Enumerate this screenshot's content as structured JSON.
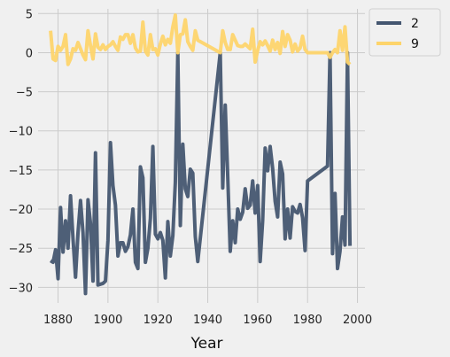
{
  "chart_data": {
    "type": "line",
    "title": "",
    "xlabel": "Year",
    "ylabel": "",
    "xlim": [
      1872,
      2003
    ],
    "ylim": [
      -32,
      5.6
    ],
    "xticks": [
      1880,
      1900,
      1920,
      1940,
      1960,
      1980,
      2000
    ],
    "yticks": [
      5,
      0,
      -5,
      -10,
      -15,
      -20,
      -25,
      -30
    ],
    "xtick_labels": [
      "1880",
      "1900",
      "1920",
      "1940",
      "1960",
      "1980",
      "2000"
    ],
    "ytick_labels": [
      "5",
      "0",
      "−5",
      "−10",
      "−15",
      "−20",
      "−25",
      "−30"
    ],
    "grid": true,
    "legend_position": "outside-top-right",
    "series": [
      {
        "name": "2",
        "color": "#445670",
        "x": [
          1877,
          1878,
          1879,
          1880,
          1881,
          1882,
          1883,
          1884,
          1885,
          1886,
          1887,
          1888,
          1889,
          1890,
          1891,
          1892,
          1893,
          1894,
          1895,
          1896,
          1897,
          1898,
          1899,
          1900,
          1901,
          1902,
          1903,
          1904,
          1905,
          1906,
          1907,
          1908,
          1909,
          1910,
          1911,
          1912,
          1913,
          1914,
          1915,
          1916,
          1917,
          1918,
          1919,
          1920,
          1921,
          1922,
          1923,
          1924,
          1925,
          1926,
          1927,
          1928,
          1929,
          1930,
          1931,
          1932,
          1933,
          1934,
          1935,
          1936,
          1945,
          1946,
          1947,
          1948,
          1949,
          1950,
          1951,
          1952,
          1953,
          1954,
          1955,
          1956,
          1957,
          1958,
          1959,
          1960,
          1961,
          1962,
          1963,
          1964,
          1965,
          1966,
          1967,
          1968,
          1969,
          1970,
          1971,
          1972,
          1973,
          1974,
          1975,
          1976,
          1977,
          1978,
          1979,
          1980,
          1988,
          1989,
          1990,
          1991,
          1992,
          1993,
          1994,
          1995,
          1996,
          1997
        ],
        "y": [
          -26.6,
          -26.8,
          -25.2,
          -28.9,
          -19.8,
          -25.5,
          -21.5,
          -25.0,
          -18.3,
          -23.8,
          -28.7,
          -23.0,
          -18.9,
          -23.0,
          -30.8,
          -18.8,
          -21.8,
          -29.2,
          -12.8,
          -29.7,
          -29.6,
          -29.5,
          -29.2,
          -24.0,
          -11.5,
          -17.0,
          -19.5,
          -26.0,
          -24.3,
          -24.3,
          -25.4,
          -24.8,
          -23.3,
          -20.0,
          -26.8,
          -27.6,
          -14.6,
          -16.0,
          -26.8,
          -25.0,
          -21.2,
          -12.0,
          -23.2,
          -23.8,
          -23.0,
          -24.0,
          -28.8,
          -21.6,
          -26.0,
          -23.4,
          -16.6,
          0.0,
          -22.1,
          -11.7,
          -17.4,
          -18.4,
          -14.9,
          -15.4,
          -23.5,
          -26.7,
          0.0,
          -17.3,
          -6.7,
          -15.8,
          -25.4,
          -21.5,
          -24.3,
          -20.0,
          -21.3,
          -20.4,
          -17.4,
          -19.9,
          -19.5,
          -16.4,
          -20.5,
          -17.0,
          -26.7,
          -21.5,
          -12.2,
          -15.1,
          -12.0,
          -14.8,
          -19.0,
          -21.0,
          -14.0,
          -15.5,
          -23.8,
          -20.0,
          -23.7,
          -19.7,
          -20.3,
          -20.5,
          -19.4,
          -21.1,
          -25.3,
          -16.4,
          -14.5,
          0.0,
          -25.7,
          -18.0,
          -27.6,
          -25.4,
          -21.0,
          -24.6,
          0.0,
          -24.7
        ]
      },
      {
        "name": "9",
        "color": "#fdd46b",
        "x": [
          1877,
          1878,
          1879,
          1880,
          1881,
          1882,
          1883,
          1884,
          1885,
          1886,
          1887,
          1888,
          1889,
          1890,
          1891,
          1892,
          1893,
          1894,
          1895,
          1896,
          1897,
          1898,
          1899,
          1900,
          1901,
          1902,
          1903,
          1904,
          1905,
          1906,
          1907,
          1908,
          1909,
          1910,
          1911,
          1912,
          1913,
          1914,
          1915,
          1916,
          1917,
          1918,
          1919,
          1920,
          1921,
          1922,
          1923,
          1924,
          1925,
          1926,
          1927,
          1928,
          1929,
          1930,
          1931,
          1932,
          1933,
          1934,
          1935,
          1936,
          1945,
          1946,
          1947,
          1948,
          1949,
          1950,
          1951,
          1952,
          1953,
          1954,
          1955,
          1956,
          1957,
          1958,
          1959,
          1960,
          1961,
          1962,
          1963,
          1964,
          1965,
          1966,
          1967,
          1968,
          1969,
          1970,
          1971,
          1972,
          1973,
          1974,
          1975,
          1976,
          1977,
          1978,
          1979,
          1980,
          1988,
          1989,
          1990,
          1991,
          1992,
          1993,
          1994,
          1995,
          1996,
          1997
        ],
        "y": [
          2.8,
          -0.8,
          -1.0,
          0.8,
          0.3,
          0.8,
          2.3,
          -1.5,
          -0.8,
          0.5,
          0.3,
          1.3,
          0.5,
          -0.3,
          -0.9,
          2.8,
          0.9,
          -0.8,
          2.4,
          0.7,
          0.4,
          1.0,
          0.4,
          0.8,
          1.0,
          1.4,
          0.8,
          0.3,
          2.0,
          1.7,
          2.3,
          2.3,
          1.2,
          2.3,
          0.6,
          0.1,
          0.2,
          3.9,
          0.2,
          -0.3,
          2.3,
          0.4,
          0.5,
          -0.3,
          1.1,
          2.1,
          1.0,
          1.7,
          1.2,
          3.3,
          4.8,
          0.0,
          2.3,
          2.4,
          4.2,
          1.4,
          0.8,
          0.3,
          2.8,
          1.6,
          0.0,
          2.8,
          1.3,
          0.4,
          0.4,
          2.3,
          1.6,
          0.9,
          0.8,
          0.8,
          1.1,
          0.8,
          0.5,
          3.0,
          -1.2,
          0.3,
          1.4,
          1.0,
          1.5,
          0.9,
          0.2,
          1.6,
          0.4,
          1.3,
          -0.1,
          2.7,
          0.8,
          2.3,
          1.6,
          0.1,
          1.1,
          0.2,
          0.6,
          2.1,
          0.4,
          0.0,
          0.0,
          -0.6,
          0.0,
          0.4,
          0.0,
          2.8,
          0.3,
          3.3,
          -1.2,
          -1.5
        ]
      }
    ]
  }
}
